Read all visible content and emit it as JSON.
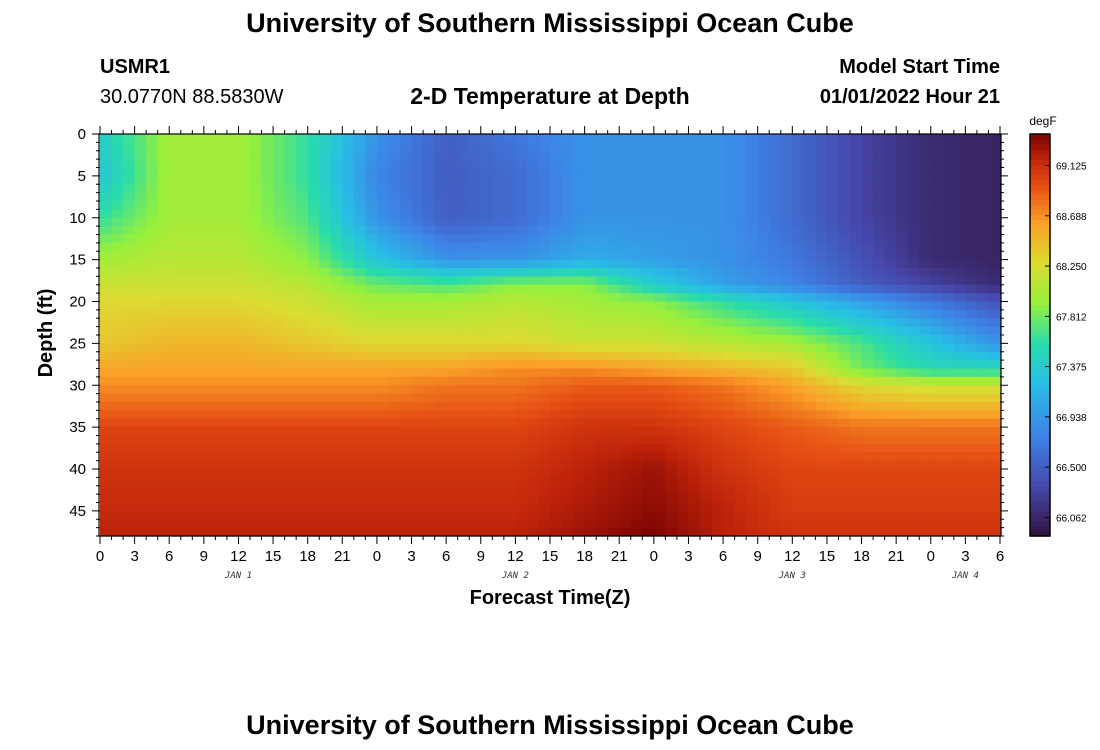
{
  "page": {
    "title_top": "University of Southern Mississippi Ocean Cube",
    "title_bottom": "University of Southern Mississippi Ocean Cube",
    "station_id": "USMR1",
    "station_coords": "30.0770N  88.5830W",
    "model_start_label": "Model Start Time",
    "model_start_value": "01/01/2022 Hour 21"
  },
  "chart_data": {
    "type": "heatmap",
    "title": "2-D Temperature at Depth",
    "xlabel": "Forecast Time(Z)",
    "ylabel": "Depth (ft)",
    "x_hours_range": [
      0,
      78
    ],
    "x_tick_labels": [
      "0",
      "3",
      "6",
      "9",
      "12",
      "15",
      "18",
      "21",
      "0",
      "3",
      "6",
      "9",
      "12",
      "15",
      "18",
      "21",
      "0",
      "3",
      "6",
      "9",
      "12",
      "15",
      "18",
      "21",
      "0",
      "3",
      "6"
    ],
    "date_labels": [
      {
        "label": "JAN 1",
        "hour": 12
      },
      {
        "label": "JAN 2",
        "hour": 36
      },
      {
        "label": "JAN 3",
        "hour": 60
      },
      {
        "label": "JAN 4",
        "hour": 75
      }
    ],
    "y_range": [
      0,
      48
    ],
    "y_ticks": [
      0,
      5,
      10,
      15,
      20,
      25,
      30,
      35,
      40,
      45
    ],
    "colorbar": {
      "unit": "degF",
      "min": 65.9,
      "max": 69.4,
      "ticks": [
        "69.125",
        "68.688",
        "68.250",
        "67.812",
        "67.375",
        "66.938",
        "66.500",
        "66.062"
      ],
      "tick_values": [
        69.125,
        68.688,
        68.25,
        67.812,
        67.375,
        66.938,
        66.5,
        66.062
      ]
    },
    "grid": {
      "hours": [
        0,
        6,
        12,
        18,
        24,
        30,
        36,
        42,
        48,
        54,
        60,
        66,
        72,
        78
      ],
      "depths": [
        0,
        5,
        10,
        15,
        18,
        20,
        25,
        28,
        30,
        35,
        40,
        45,
        48
      ],
      "values": [
        [
          67.4,
          68.0,
          68.0,
          67.6,
          66.9,
          66.5,
          66.7,
          66.9,
          66.9,
          66.9,
          66.6,
          66.3,
          66.1,
          66.05
        ],
        [
          67.3,
          68.0,
          68.0,
          67.6,
          66.8,
          66.5,
          66.6,
          66.9,
          66.9,
          66.9,
          66.6,
          66.3,
          66.1,
          66.05
        ],
        [
          67.6,
          68.0,
          68.0,
          67.7,
          66.9,
          66.5,
          66.6,
          66.9,
          66.9,
          66.9,
          66.6,
          66.3,
          66.1,
          66.05
        ],
        [
          68.0,
          68.1,
          68.1,
          67.9,
          67.3,
          66.9,
          66.9,
          67.1,
          67.0,
          66.9,
          66.7,
          66.4,
          66.1,
          66.05
        ],
        [
          68.2,
          68.2,
          68.2,
          68.1,
          67.8,
          67.7,
          67.9,
          67.9,
          67.4,
          67.0,
          66.8,
          66.5,
          66.3,
          66.1
        ],
        [
          68.3,
          68.3,
          68.3,
          68.2,
          68.0,
          68.0,
          68.1,
          68.0,
          67.9,
          67.6,
          67.3,
          67.0,
          66.7,
          66.4
        ],
        [
          68.4,
          68.5,
          68.5,
          68.4,
          68.3,
          68.3,
          68.3,
          68.2,
          68.2,
          68.1,
          68.0,
          67.7,
          67.3,
          66.9
        ],
        [
          68.6,
          68.6,
          68.6,
          68.6,
          68.6,
          68.6,
          68.7,
          68.7,
          68.6,
          68.5,
          68.4,
          67.8,
          67.5,
          67.5
        ],
        [
          68.7,
          68.7,
          68.7,
          68.7,
          68.7,
          68.8,
          68.8,
          68.9,
          68.9,
          68.8,
          68.6,
          68.3,
          68.2,
          68.2
        ],
        [
          69.0,
          69.0,
          69.0,
          69.0,
          69.0,
          69.0,
          69.0,
          69.1,
          69.1,
          69.0,
          68.9,
          68.8,
          68.8,
          68.8
        ],
        [
          69.1,
          69.1,
          69.1,
          69.1,
          69.1,
          69.1,
          69.1,
          69.2,
          69.3,
          69.1,
          69.0,
          69.0,
          69.0,
          69.0
        ],
        [
          69.15,
          69.15,
          69.15,
          69.15,
          69.15,
          69.15,
          69.15,
          69.25,
          69.35,
          69.2,
          69.05,
          69.05,
          69.05,
          69.05
        ],
        [
          69.2,
          69.2,
          69.2,
          69.2,
          69.2,
          69.2,
          69.2,
          69.3,
          69.4,
          69.2,
          69.1,
          69.1,
          69.1,
          69.1
        ]
      ]
    }
  }
}
